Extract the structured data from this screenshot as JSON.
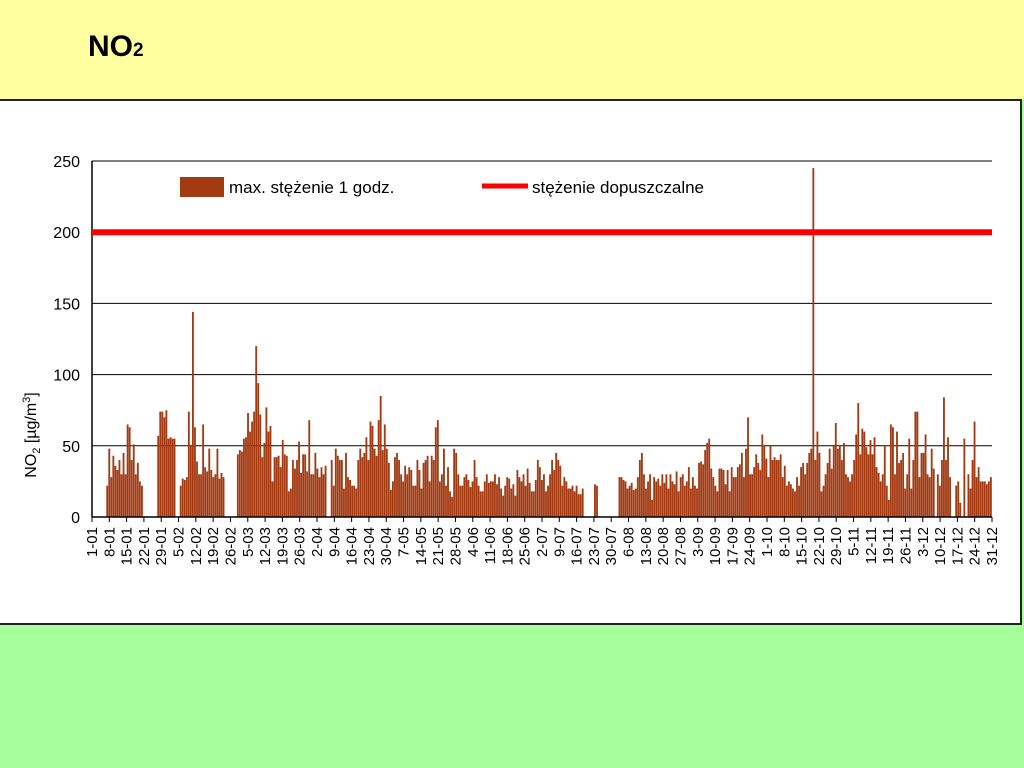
{
  "slide": {
    "title_main": "NO",
    "title_sub": "2"
  },
  "colors": {
    "top_band": "#ffff9f",
    "bottom_band": "#a6ff9a",
    "bar": "#a33a12",
    "limit_line": "#ff0000",
    "grid": "#000000"
  },
  "chart_data": {
    "type": "bar",
    "title": "",
    "ylabel": "NO2 [µg/m3]",
    "ylabel_parts": {
      "main": "NO",
      "sub": "2",
      "unit": " [µg/m",
      "sup": "3",
      "close": "]"
    },
    "ylim": [
      0,
      250
    ],
    "yticks": [
      "0",
      "50",
      "100",
      "150",
      "200",
      "250"
    ],
    "grid": true,
    "legend": {
      "placement": "top",
      "entries": [
        {
          "label": "max. stężenie 1 godz.",
          "kind": "bar"
        },
        {
          "label": "stężenie dopuszczalne",
          "kind": "line"
        }
      ]
    },
    "xticks": [
      "1-01",
      "8-01",
      "15-01",
      "22-01",
      "29-01",
      "5-02",
      "12-02",
      "19-02",
      "26-02",
      "5-03",
      "12-03",
      "19-03",
      "26-03",
      "2-04",
      "9-04",
      "16-04",
      "23-04",
      "30-04",
      "7-05",
      "14-05",
      "21-05",
      "28-05",
      "4-06",
      "11-06",
      "18-06",
      "25-06",
      "2-07",
      "9-07",
      "16-07",
      "23-07",
      "30-07",
      "6-08",
      "13-08",
      "20-08",
      "27-08",
      "3-09",
      "10-09",
      "17-09",
      "24-09",
      "1-10",
      "8-10",
      "15-10",
      "22-10",
      "29-10",
      "5-11",
      "12-11",
      "19-11",
      "26-11",
      "3-12",
      "10-12",
      "17-12",
      "24-12",
      "31-12"
    ],
    "series": [
      {
        "name": "max. stężenie 1 godz.",
        "type": "bar",
        "values": [
          0,
          0,
          0,
          0,
          0,
          0,
          0,
          22,
          48,
          28,
          43,
          36,
          33,
          40,
          30,
          45,
          30,
          65,
          63,
          40,
          51,
          30,
          38,
          25,
          22,
          0,
          0,
          0,
          0,
          0,
          0,
          0,
          57,
          74,
          74,
          70,
          75,
          55,
          56,
          55,
          55,
          0,
          0,
          22,
          27,
          26,
          28,
          74,
          50,
          144,
          63,
          39,
          30,
          30,
          65,
          35,
          32,
          48,
          33,
          28,
          30,
          48,
          27,
          31,
          28,
          0,
          0,
          0,
          0,
          0,
          0,
          44,
          47,
          46,
          55,
          56,
          73,
          60,
          67,
          74,
          120,
          94,
          72,
          42,
          52,
          77,
          60,
          64,
          25,
          42,
          42,
          43,
          35,
          54,
          44,
          43,
          18,
          20,
          40,
          34,
          40,
          53,
          31,
          44,
          44,
          32,
          68,
          30,
          30,
          45,
          34,
          28,
          35,
          30,
          36,
          0,
          0,
          40,
          22,
          48,
          43,
          40,
          40,
          20,
          45,
          28,
          26,
          22,
          22,
          20,
          40,
          48,
          42,
          45,
          56,
          40,
          67,
          64,
          48,
          43,
          68,
          85,
          47,
          65,
          48,
          38,
          19,
          25,
          42,
          45,
          40,
          30,
          25,
          36,
          30,
          35,
          33,
          22,
          22,
          40,
          33,
          20,
          38,
          40,
          43,
          25,
          43,
          40,
          63,
          68,
          25,
          30,
          48,
          22,
          35,
          18,
          14,
          48,
          45,
          30,
          22,
          22,
          28,
          30,
          26,
          21,
          25,
          40,
          28,
          22,
          18,
          18,
          25,
          30,
          24,
          25,
          25,
          30,
          23,
          28,
          20,
          15,
          22,
          28,
          27,
          20,
          23,
          15,
          33,
          28,
          25,
          30,
          22,
          34,
          24,
          18,
          18,
          26,
          40,
          35,
          26,
          30,
          18,
          22,
          30,
          40,
          33,
          45,
          40,
          36,
          22,
          28,
          25,
          20,
          20,
          22,
          18,
          22,
          16,
          16,
          20,
          0,
          0,
          0,
          0,
          0,
          23,
          22,
          0,
          0,
          0,
          0,
          0,
          0,
          0,
          0,
          0,
          0,
          28,
          28,
          26,
          25,
          20,
          22,
          24,
          19,
          20,
          28,
          40,
          45,
          30,
          20,
          25,
          30,
          12,
          28,
          25,
          27,
          22,
          30,
          24,
          30,
          20,
          30,
          25,
          23,
          32,
          18,
          28,
          30,
          22,
          25,
          35,
          20,
          28,
          22,
          20,
          38,
          39,
          37,
          47,
          52,
          55,
          34,
          28,
          22,
          18,
          34,
          34,
          33,
          23,
          33,
          18,
          35,
          28,
          28,
          35,
          37,
          45,
          28,
          48,
          70,
          30,
          30,
          35,
          44,
          38,
          33,
          58,
          50,
          41,
          28,
          50,
          40,
          42,
          40,
          40,
          44,
          28,
          36,
          22,
          25,
          23,
          20,
          18,
          28,
          22,
          35,
          38,
          30,
          38,
          45,
          48,
          245,
          40,
          60,
          45,
          18,
          22,
          30,
          38,
          48,
          34,
          50,
          66,
          48,
          50,
          40,
          52,
          30,
          28,
          25,
          30,
          40,
          58,
          80,
          44,
          62,
          60,
          49,
          44,
          54,
          44,
          56,
          35,
          31,
          25,
          30,
          50,
          22,
          12,
          65,
          63,
          30,
          60,
          38,
          40,
          45,
          20,
          30,
          55,
          20,
          40,
          74,
          74,
          28,
          45,
          45,
          58,
          30,
          28,
          48,
          34,
          0,
          30,
          22,
          40,
          84,
          40,
          56,
          28,
          0,
          0,
          22,
          25,
          10,
          0,
          55,
          0,
          30,
          20,
          40,
          67,
          28,
          35,
          25,
          25,
          25,
          23,
          25,
          28
        ]
      },
      {
        "name": "stężenie dopuszczalne",
        "type": "line",
        "value": 200
      }
    ]
  }
}
